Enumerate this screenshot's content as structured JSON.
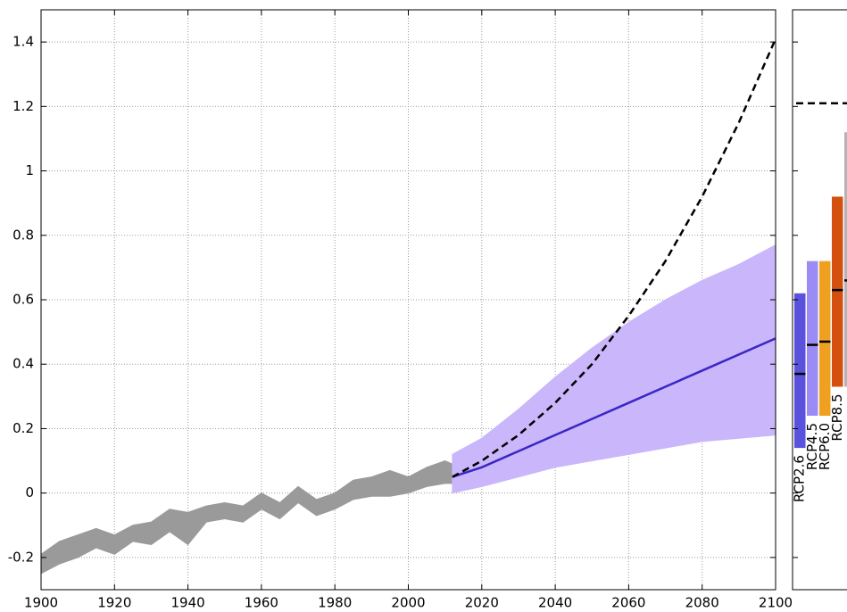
{
  "chart_data": [
    {
      "type": "line",
      "xlim": [
        1900,
        2100
      ],
      "ylim": [
        -0.3,
        1.5
      ],
      "xticks": [
        1900,
        1920,
        1940,
        1960,
        1980,
        2000,
        2020,
        2040,
        2060,
        2080,
        2100
      ],
      "yticks": [
        -0.2,
        0,
        0.2,
        0.4,
        0.6,
        0.8,
        1,
        1.2,
        1.4
      ],
      "grid": true,
      "series": [
        {
          "style": "band",
          "color": "#9a9a9a",
          "x": [
            1900,
            1905,
            1910,
            1915,
            1920,
            1925,
            1930,
            1935,
            1940,
            1945,
            1950,
            1955,
            1960,
            1965,
            1970,
            1975,
            1980,
            1985,
            1990,
            1995,
            2000,
            2005,
            2010,
            2012
          ],
          "lower": [
            -0.25,
            -0.22,
            -0.2,
            -0.17,
            -0.19,
            -0.15,
            -0.16,
            -0.12,
            -0.16,
            -0.09,
            -0.08,
            -0.09,
            -0.05,
            -0.08,
            -0.03,
            -0.07,
            -0.05,
            -0.02,
            -0.01,
            -0.01,
            0,
            0.02,
            0.03,
            0.03
          ],
          "upper": [
            -0.19,
            -0.15,
            -0.13,
            -0.11,
            -0.13,
            -0.1,
            -0.09,
            -0.05,
            -0.06,
            -0.04,
            -0.03,
            -0.04,
            0,
            -0.03,
            0.02,
            -0.02,
            0,
            0.04,
            0.05,
            0.07,
            0.05,
            0.08,
            0.1,
            0.09
          ]
        },
        {
          "style": "band",
          "color": "#c9b6fb",
          "x": [
            2012,
            2020,
            2030,
            2040,
            2050,
            2060,
            2070,
            2080,
            2090,
            2100
          ],
          "lower": [
            0,
            0.02,
            0.05,
            0.08,
            0.1,
            0.12,
            0.14,
            0.16,
            0.17,
            0.18
          ],
          "upper": [
            0.12,
            0.17,
            0.26,
            0.36,
            0.45,
            0.53,
            0.6,
            0.66,
            0.71,
            0.77
          ]
        },
        {
          "style": "solid",
          "color": "#3a26c4",
          "x": [
            2012,
            2020,
            2030,
            2040,
            2050,
            2060,
            2070,
            2080,
            2090,
            2100
          ],
          "values": [
            0.05,
            0.08,
            0.13,
            0.18,
            0.23,
            0.28,
            0.33,
            0.38,
            0.43,
            0.48
          ]
        },
        {
          "style": "dashed",
          "color": "#000000",
          "x": [
            2012,
            2020,
            2030,
            2040,
            2050,
            2060,
            2070,
            2080,
            2090,
            2100
          ],
          "values": [
            0.05,
            0.1,
            0.18,
            0.28,
            0.4,
            0.55,
            0.72,
            0.92,
            1.15,
            1.41
          ]
        }
      ]
    },
    {
      "type": "bar",
      "ylim": [
        -0.3,
        1.5
      ],
      "yticks": [
        -0.2,
        0,
        0.2,
        0.4,
        0.6,
        0.8,
        1,
        1.2,
        1.4
      ],
      "categories": [
        "RCP2.6",
        "RCP4.5",
        "RCP6.0",
        "RCP8.5",
        null
      ],
      "values": [
        0.37,
        0.46,
        0.47,
        0.63,
        0.66
      ],
      "lower": [
        0.14,
        0.24,
        0.24,
        0.33,
        0.33
      ],
      "upper": [
        0.62,
        0.72,
        0.72,
        0.92,
        1.12
      ],
      "colors": [
        "#5a52dc",
        "#9a8cf4",
        "#f0a020",
        "#d4500e",
        "#b4b4b4"
      ],
      "dashed_line": 1.21
    }
  ]
}
